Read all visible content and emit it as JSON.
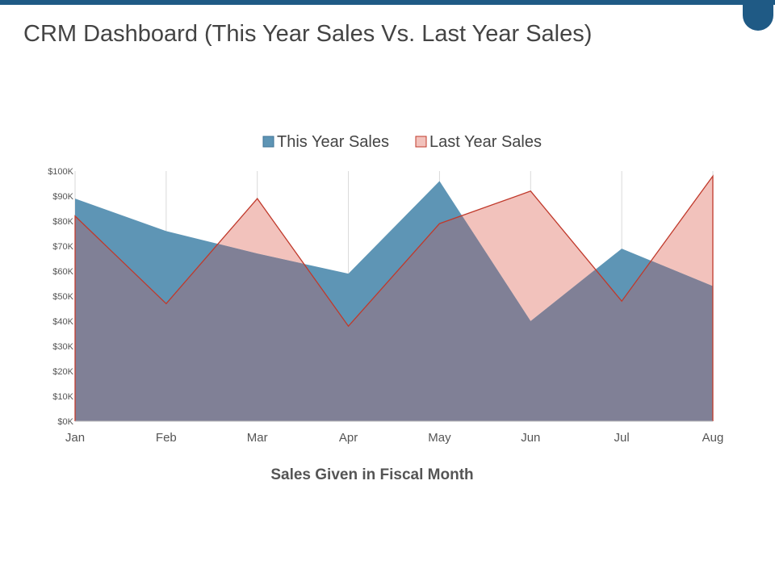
{
  "page": {
    "title": "CRM Dashboard (This Year Sales Vs. Last Year Sales)"
  },
  "colors": {
    "brand": "#1f5a85",
    "this_year_fill": "#5e95b5",
    "last_year_fill": "#f2c2bc",
    "last_year_line": "#c0392b",
    "overlap_fill": "#808096"
  },
  "chart_data": {
    "type": "area",
    "categories": [
      "Jan",
      "Feb",
      "Mar",
      "Apr",
      "May",
      "Jun",
      "Jul",
      "Aug"
    ],
    "series": [
      {
        "name": "This Year Sales",
        "values": [
          89,
          76,
          67,
          59,
          96,
          40,
          69,
          54
        ]
      },
      {
        "name": "Last Year Sales",
        "values": [
          82,
          47,
          89,
          38,
          79,
          92,
          48,
          98
        ]
      }
    ],
    "yticks": [
      "$0K",
      "$10K",
      "$20K",
      "$30K",
      "$40K",
      "$50K",
      "$60K",
      "$70K",
      "$80K",
      "$90K",
      "$100K"
    ],
    "ylim": [
      0,
      100
    ],
    "xlabel": "Sales Given in Fiscal Month",
    "ylabel": "",
    "grid": "vertical",
    "legend_position": "top-center"
  }
}
